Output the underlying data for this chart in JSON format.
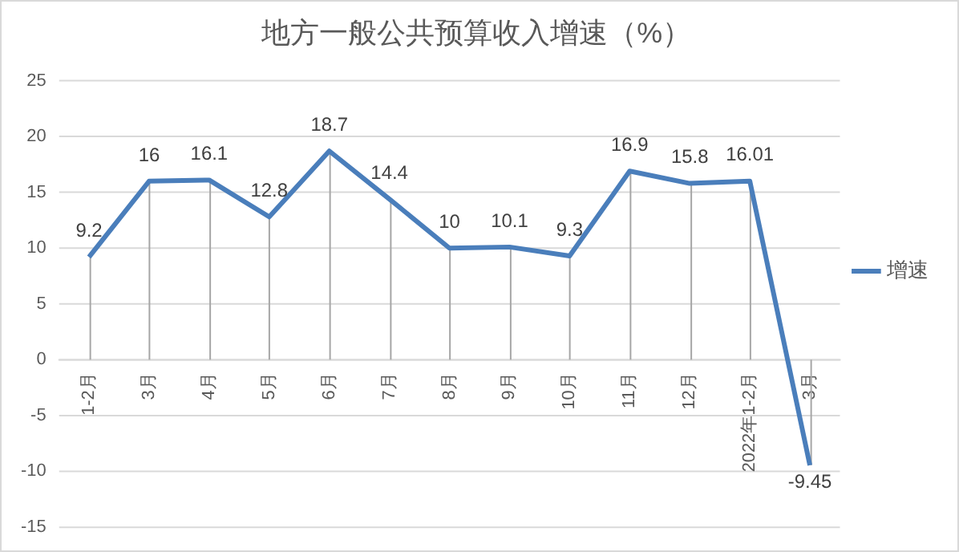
{
  "chart_data": {
    "type": "line",
    "title": "地方一般公共预算收入增速（%）",
    "categories": [
      "1-2月",
      "3月",
      "4月",
      "5月",
      "6月",
      "7月",
      "8月",
      "9月",
      "10月",
      "11月",
      "12月",
      "2022年1-2月",
      "3月"
    ],
    "series": [
      {
        "name": "增速",
        "color": "#4a7ebb",
        "values": [
          9.2,
          16,
          16.1,
          12.8,
          18.7,
          14.4,
          10,
          10.1,
          9.3,
          16.9,
          15.8,
          16.01,
          -9.45
        ]
      }
    ],
    "ylim": [
      -15,
      25
    ],
    "yticks": [
      -15,
      -10,
      -5,
      0,
      5,
      10,
      15,
      20,
      25
    ],
    "grid": "y",
    "legend": "right",
    "data_labels": true,
    "marker": "none",
    "line_style": "solid"
  }
}
